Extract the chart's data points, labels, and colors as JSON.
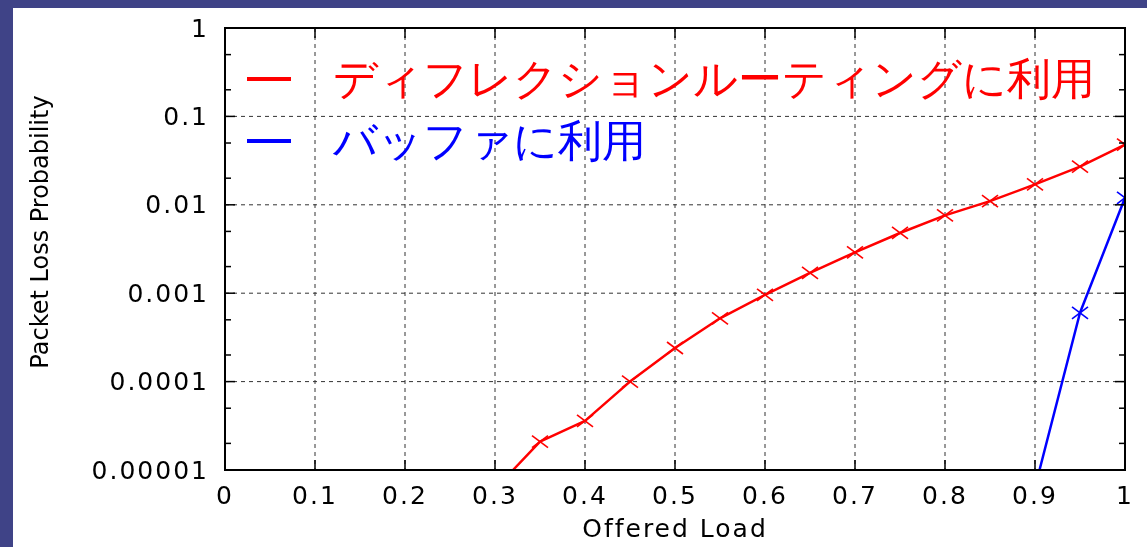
{
  "chart_data": {
    "type": "line",
    "xlabel": "Offered Load",
    "ylabel": "Packet Loss Probability",
    "xlim": [
      0,
      1
    ],
    "xticks": [
      0,
      0.1,
      0.2,
      0.3,
      0.4,
      0.5,
      0.6,
      0.7,
      0.8,
      0.9,
      1
    ],
    "ylim": [
      1e-05,
      1
    ],
    "yticks": [
      {
        "value": 1e-05,
        "label": "0.00001"
      },
      {
        "value": 2e-05,
        "label": null
      },
      {
        "value": 5e-05,
        "label": null
      },
      0.0001,
      {
        "value": 0.0002,
        "label": null
      },
      {
        "value": 0.0005,
        "label": null
      },
      0.001,
      {
        "value": 0.002,
        "label": null
      },
      {
        "value": 0.005,
        "label": null
      },
      0.01,
      {
        "value": 0.02,
        "label": null
      },
      {
        "value": 0.05,
        "label": null
      },
      0.1,
      {
        "value": 0.2,
        "label": null
      },
      {
        "value": 0.5,
        "label": null
      },
      1
    ],
    "log": "y",
    "grid": true,
    "legend": "top left",
    "marker": "cross",
    "series": [
      {
        "name": "ディフレクションルーティングに利用",
        "color": "#ff0000",
        "x": [
          0.32,
          0.35,
          0.4,
          0.45,
          0.5,
          0.55,
          0.6,
          0.65,
          0.7,
          0.75,
          0.8,
          0.85,
          0.9,
          0.95,
          1
        ],
        "values": [
          1e-05,
          2.1e-05,
          3.6e-05,
          0.0001,
          0.00024,
          0.00052,
          0.00096,
          0.0017,
          0.0029,
          0.0048,
          0.0076,
          0.011,
          0.017,
          0.027,
          0.048
        ]
      },
      {
        "name": "バッファに利用",
        "color": "#0000ff",
        "x": [
          0.905,
          0.95,
          1
        ],
        "values": [
          1e-05,
          0.0006,
          0.012
        ]
      }
    ]
  }
}
